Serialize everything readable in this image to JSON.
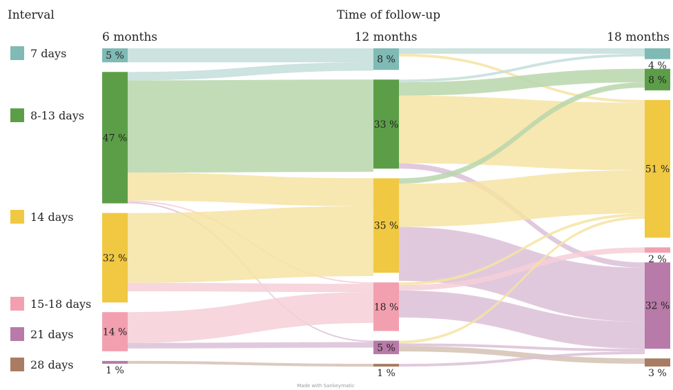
{
  "chart_data": {
    "type": "sankey",
    "title": "Time of follow-up",
    "legend_title": "Interval",
    "footer": "Made with Sankeymatic",
    "stages": [
      "6 months",
      "12 months",
      "18 months"
    ],
    "categories": [
      {
        "key": "d7",
        "label": "7 days",
        "color": "#7fbab5",
        "flow_color": "#c3dedb"
      },
      {
        "key": "d8",
        "label": "8-13 days",
        "color": "#5c9e48",
        "flow_color": "#b9d6ab"
      },
      {
        "key": "d14",
        "label": "14 days",
        "color": "#f0c842",
        "flow_color": "#f6e3a3"
      },
      {
        "key": "d15",
        "label": "15-18 days",
        "color": "#f2a0b0",
        "flow_color": "#f6cfd7"
      },
      {
        "key": "d21",
        "label": "21 days",
        "color": "#b87aa8",
        "flow_color": "#dcc0d7"
      },
      {
        "key": "d28",
        "label": "28 days",
        "color": "#a87c62",
        "flow_color": "#d5c1b3"
      }
    ],
    "nodes": {
      "6 months": {
        "d7": 5,
        "d8": 47,
        "d14": 32,
        "d15": 14,
        "d21": 1
      },
      "12 months": {
        "d7": 8,
        "d8": 33,
        "d14": 35,
        "d15": 18,
        "d21": 5,
        "d28": 1
      },
      "18 months": {
        "d7": 4,
        "d8": 8,
        "d14": 51,
        "d15": 2,
        "d21": 32,
        "d28": 3
      }
    },
    "node_labels": {
      "6 months": {
        "d7": "5 %",
        "d8": "47 %",
        "d14": "32 %",
        "d15": "14 %",
        "d21": "1 %"
      },
      "12 months": {
        "d7": "8 %",
        "d8": "33 %",
        "d14": "35 %",
        "d15": "18 %",
        "d21": "5 %",
        "d28": "1 %"
      },
      "18 months": {
        "d7": "4 %",
        "d8": "8 %",
        "d14": "51 %",
        "d15": "2 %",
        "d21": "32 %",
        "d28": "3 %"
      }
    },
    "flows": [
      {
        "from": "6 months",
        "source": "d7",
        "to": "12 months",
        "target": "d7",
        "value": 5
      },
      {
        "from": "6 months",
        "source": "d8",
        "to": "12 months",
        "target": "d7",
        "value": 3
      },
      {
        "from": "6 months",
        "source": "d8",
        "to": "12 months",
        "target": "d8",
        "value": 33
      },
      {
        "from": "6 months",
        "source": "d8",
        "to": "12 months",
        "target": "d14",
        "value": 10
      },
      {
        "from": "6 months",
        "source": "d8",
        "to": "12 months",
        "target": "d15",
        "value": 0.5
      },
      {
        "from": "6 months",
        "source": "d8",
        "to": "12 months",
        "target": "d21",
        "value": 0.5
      },
      {
        "from": "6 months",
        "source": "d14",
        "to": "12 months",
        "target": "d14",
        "value": 25
      },
      {
        "from": "6 months",
        "source": "d14",
        "to": "12 months",
        "target": "d15",
        "value": 3
      },
      {
        "from": "6 months",
        "source": "d15",
        "to": "12 months",
        "target": "d15",
        "value": 11
      },
      {
        "from": "6 months",
        "source": "d15",
        "to": "12 months",
        "target": "d21",
        "value": 2
      },
      {
        "from": "6 months",
        "source": "d21",
        "to": "12 months",
        "target": "d28",
        "value": 1
      },
      {
        "from": "12 months",
        "source": "d7",
        "to": "18 months",
        "target": "d7",
        "value": 2
      },
      {
        "from": "12 months",
        "source": "d7",
        "to": "18 months",
        "target": "d14",
        "value": 1
      },
      {
        "from": "12 months",
        "source": "d8",
        "to": "18 months",
        "target": "d7",
        "value": 1
      },
      {
        "from": "12 months",
        "source": "d8",
        "to": "18 months",
        "target": "d8",
        "value": 5
      },
      {
        "from": "12 months",
        "source": "d8",
        "to": "18 months",
        "target": "d14",
        "value": 25
      },
      {
        "from": "12 months",
        "source": "d8",
        "to": "18 months",
        "target": "d21",
        "value": 2
      },
      {
        "from": "12 months",
        "source": "d14",
        "to": "18 months",
        "target": "d8",
        "value": 2
      },
      {
        "from": "12 months",
        "source": "d14",
        "to": "18 months",
        "target": "d14",
        "value": 16
      },
      {
        "from": "12 months",
        "source": "d14",
        "to": "18 months",
        "target": "d21",
        "value": 20
      },
      {
        "from": "12 months",
        "source": "d15",
        "to": "18 months",
        "target": "d14",
        "value": 1
      },
      {
        "from": "12 months",
        "source": "d15",
        "to": "18 months",
        "target": "d15",
        "value": 2
      },
      {
        "from": "12 months",
        "source": "d15",
        "to": "18 months",
        "target": "d21",
        "value": 10
      },
      {
        "from": "12 months",
        "source": "d21",
        "to": "18 months",
        "target": "d14",
        "value": 1
      },
      {
        "from": "12 months",
        "source": "d21",
        "to": "18 months",
        "target": "d21",
        "value": 1
      },
      {
        "from": "12 months",
        "source": "d21",
        "to": "18 months",
        "target": "d28",
        "value": 2
      },
      {
        "from": "12 months",
        "source": "d28",
        "to": "18 months",
        "target": "d21",
        "value": 1
      }
    ]
  }
}
